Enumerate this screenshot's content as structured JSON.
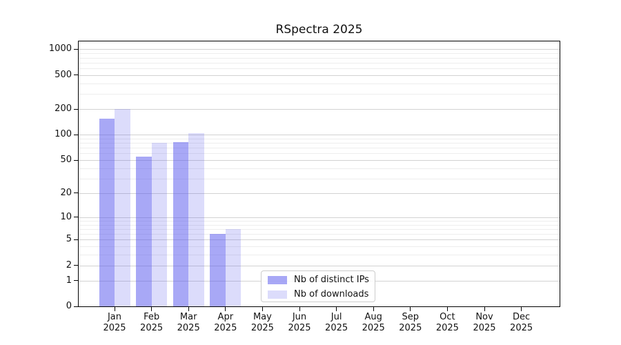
{
  "chart_data": {
    "type": "bar",
    "title": "RSpectra 2025",
    "x_year": "2025",
    "categories": [
      "Jan",
      "Feb",
      "Mar",
      "Apr",
      "May",
      "Jun",
      "Jul",
      "Aug",
      "Sep",
      "Oct",
      "Nov",
      "Dec"
    ],
    "series": [
      {
        "name": "Nb of distinct IPs",
        "color": "#5252ed",
        "alpha": 0.5,
        "values": [
          155,
          55,
          82,
          6,
          0,
          0,
          0,
          0,
          0,
          0,
          0,
          0
        ]
      },
      {
        "name": "Nb of downloads",
        "color": "#5252ed",
        "alpha": 0.2,
        "values": [
          200,
          80,
          105,
          7,
          0,
          0,
          0,
          0,
          0,
          0,
          0,
          0
        ]
      }
    ],
    "yscale": "log1p",
    "ylim": [
      0,
      1238
    ],
    "yticks": [
      0,
      1,
      2,
      5,
      10,
      20,
      50,
      100,
      200,
      500,
      1000
    ],
    "minor_gridlines": [
      3,
      4,
      6,
      7,
      8,
      9,
      30,
      40,
      60,
      70,
      80,
      90,
      300,
      400,
      600,
      700,
      800,
      900
    ],
    "grid": true,
    "legend_position": "lower-center",
    "colors": {
      "major_grid": "#d2d2d2",
      "minor_grid": "#ededed",
      "axis": "#000000",
      "text": "#111111",
      "background": "#ffffff"
    }
  }
}
